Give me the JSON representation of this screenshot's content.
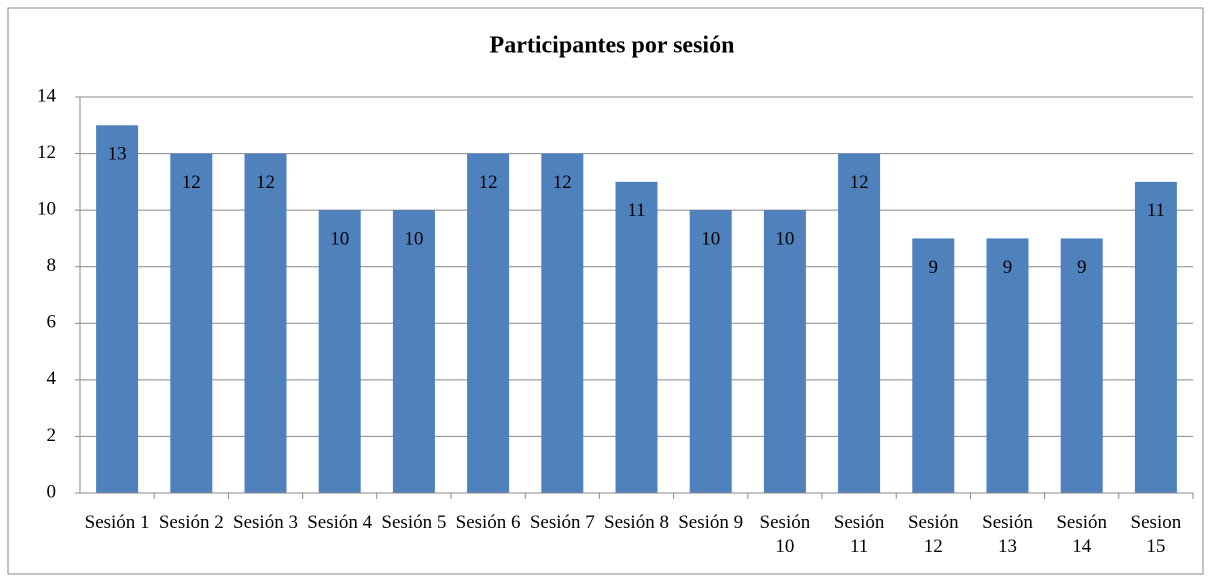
{
  "chart_data": {
    "type": "bar",
    "title": "Participantes por sesión",
    "categories": [
      "Sesión 1",
      "Sesión 2",
      "Sesión 3",
      "Sesión 4",
      "Sesión 5",
      "Sesión 6",
      "Sesión 7",
      "Sesión 8",
      "Sesión 9",
      "Sesión 10",
      "Sesión 11",
      "Sesión 12",
      "Sesión 13",
      "Sesión 14",
      "Sesion 15"
    ],
    "values": [
      13,
      12,
      12,
      10,
      10,
      12,
      12,
      11,
      10,
      10,
      12,
      9,
      9,
      9,
      11
    ],
    "color": "#4f81bd",
    "ylim": [
      0,
      14
    ],
    "yticks": [
      0,
      2,
      4,
      6,
      8,
      10,
      12,
      14
    ],
    "grid": true
  }
}
